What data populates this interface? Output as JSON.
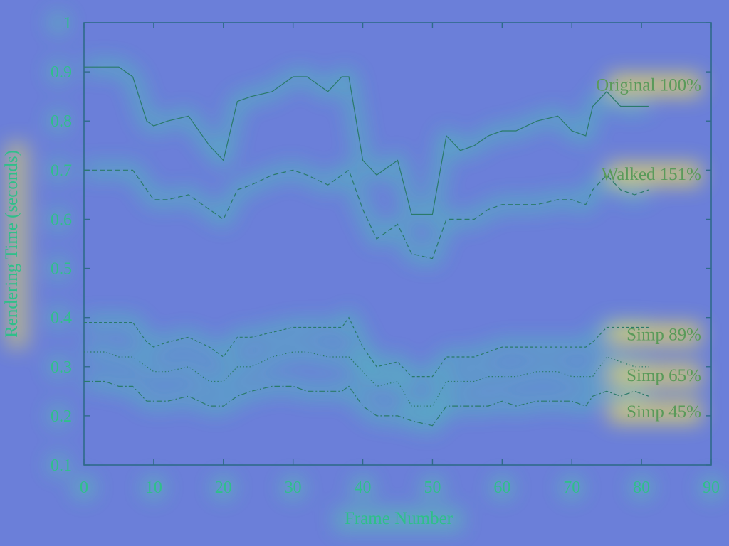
{
  "chart_data": {
    "type": "line",
    "xlabel": "Frame Number",
    "ylabel": "Rendering Time (seconds)",
    "xlim": [
      0,
      90
    ],
    "ylim": [
      0.1,
      1
    ],
    "xticks": [
      "0",
      "10",
      "20",
      "30",
      "40",
      "50",
      "60",
      "70",
      "80",
      "90"
    ],
    "yticks": [
      "0.1",
      "0.2",
      "0.3",
      "0.4",
      "0.5",
      "0.6",
      "0.7",
      "0.8",
      "0.9",
      "1"
    ],
    "grid": false,
    "legend": "none",
    "x": [
      0,
      3,
      5,
      7,
      9,
      10,
      12,
      15,
      18,
      20,
      22,
      24,
      27,
      30,
      32,
      35,
      37,
      38,
      40,
      42,
      45,
      47,
      50,
      52,
      54,
      56,
      58,
      60,
      62,
      65,
      68,
      70,
      72,
      73,
      75,
      77,
      79,
      81
    ],
    "series": [
      {
        "name": "Original 100%",
        "style": "solid",
        "values": [
          0.91,
          0.91,
          0.91,
          0.89,
          0.8,
          0.79,
          0.8,
          0.81,
          0.75,
          0.72,
          0.84,
          0.85,
          0.86,
          0.89,
          0.89,
          0.86,
          0.89,
          0.89,
          0.72,
          0.69,
          0.72,
          0.61,
          0.61,
          0.77,
          0.74,
          0.75,
          0.77,
          0.78,
          0.78,
          0.8,
          0.81,
          0.78,
          0.77,
          0.83,
          0.86,
          0.83,
          0.83,
          0.83
        ]
      },
      {
        "name": "Walked 151%",
        "style": "dashed",
        "values": [
          0.7,
          0.7,
          0.7,
          0.7,
          0.66,
          0.64,
          0.64,
          0.65,
          0.62,
          0.6,
          0.66,
          0.67,
          0.69,
          0.7,
          0.69,
          0.67,
          0.69,
          0.7,
          0.62,
          0.56,
          0.59,
          0.53,
          0.52,
          0.6,
          0.6,
          0.6,
          0.62,
          0.63,
          0.63,
          0.63,
          0.64,
          0.64,
          0.63,
          0.66,
          0.69,
          0.66,
          0.65,
          0.66
        ]
      },
      {
        "name": "Simp 89%",
        "style": "dashed-fine",
        "values": [
          0.39,
          0.39,
          0.39,
          0.39,
          0.35,
          0.34,
          0.35,
          0.36,
          0.34,
          0.32,
          0.36,
          0.36,
          0.37,
          0.38,
          0.38,
          0.38,
          0.38,
          0.4,
          0.34,
          0.3,
          0.31,
          0.28,
          0.28,
          0.32,
          0.32,
          0.32,
          0.33,
          0.34,
          0.34,
          0.34,
          0.34,
          0.34,
          0.34,
          0.35,
          0.38,
          0.38,
          0.38,
          0.38
        ]
      },
      {
        "name": "Simp 65%",
        "style": "dotted",
        "values": [
          0.33,
          0.33,
          0.32,
          0.32,
          0.3,
          0.29,
          0.29,
          0.3,
          0.27,
          0.27,
          0.3,
          0.3,
          0.32,
          0.33,
          0.33,
          0.32,
          0.32,
          0.32,
          0.29,
          0.26,
          0.27,
          0.22,
          0.22,
          0.27,
          0.27,
          0.27,
          0.28,
          0.28,
          0.28,
          0.29,
          0.29,
          0.28,
          0.28,
          0.28,
          0.32,
          0.31,
          0.3,
          0.3
        ]
      },
      {
        "name": "Simp 45%",
        "style": "dash-dot",
        "values": [
          0.27,
          0.27,
          0.26,
          0.26,
          0.23,
          0.23,
          0.23,
          0.24,
          0.22,
          0.22,
          0.24,
          0.25,
          0.26,
          0.26,
          0.25,
          0.25,
          0.25,
          0.26,
          0.22,
          0.2,
          0.2,
          0.19,
          0.18,
          0.22,
          0.22,
          0.22,
          0.22,
          0.23,
          0.22,
          0.23,
          0.23,
          0.23,
          0.22,
          0.24,
          0.25,
          0.24,
          0.25,
          0.24
        ]
      }
    ]
  }
}
